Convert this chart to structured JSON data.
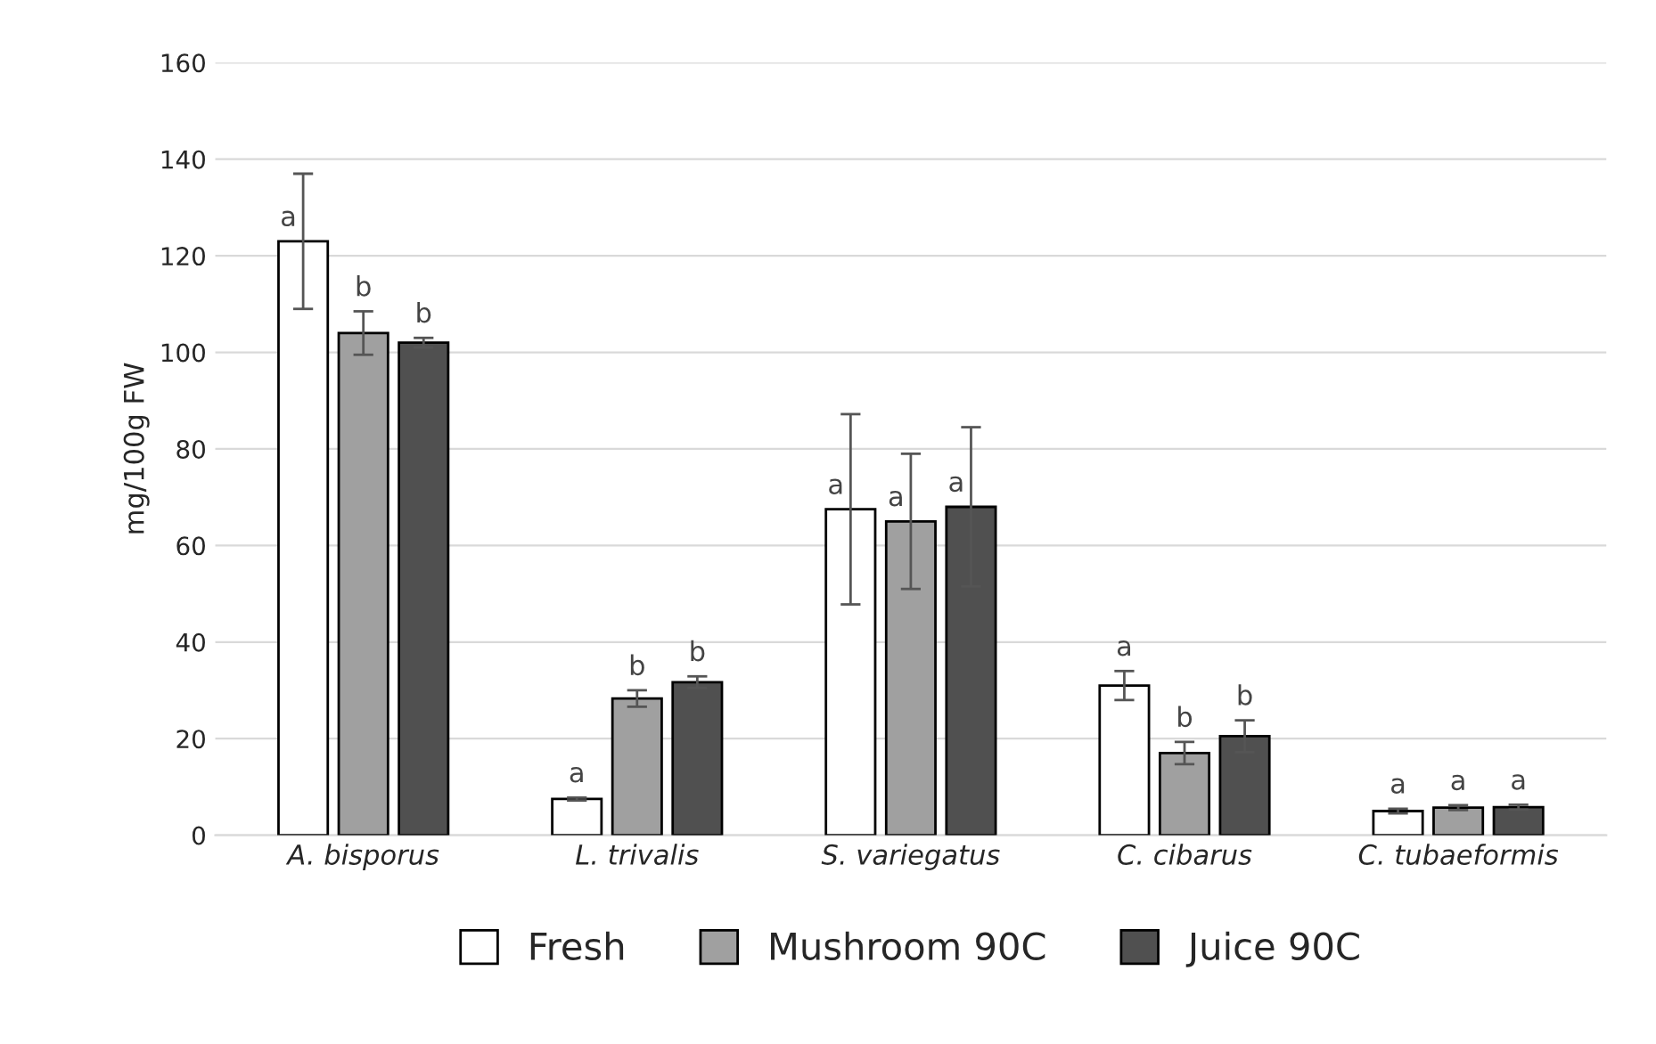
{
  "chart_data": {
    "type": "bar",
    "ylabel": "mg/100g FW",
    "categories": [
      "A. bisporus",
      "L. trivalis",
      "S. variegatus",
      "C. cibarus",
      "C. tubaeformis"
    ],
    "series": [
      {
        "name": "Fresh",
        "color": "#ffffff",
        "values": [
          123,
          7.5,
          67.5,
          31,
          5
        ],
        "errors": [
          14,
          0.3,
          19.7,
          3,
          0.5
        ],
        "value_labels": [
          "a",
          "a",
          "a",
          "a",
          "a"
        ]
      },
      {
        "name": "Mushroom 90C",
        "color": "#a0a0a0",
        "values": [
          104,
          28.3,
          65,
          17,
          5.7
        ],
        "errors": [
          4.5,
          1.7,
          14,
          2.3,
          0.5
        ],
        "value_labels": [
          "b",
          "b",
          "a",
          "b",
          "a"
        ]
      },
      {
        "name": "Juice 90C",
        "color": "#505050",
        "values": [
          102,
          31.7,
          68,
          20.5,
          5.8
        ],
        "errors": [
          1,
          1.2,
          16.5,
          3.3,
          0.5
        ],
        "value_labels": [
          "b",
          "b",
          "a",
          "b",
          "a"
        ]
      }
    ],
    "ylim": [
      0,
      160
    ],
    "yticks": [
      0,
      20,
      40,
      60,
      80,
      100,
      120,
      140,
      160
    ],
    "grid": "y",
    "legend": "bottom"
  }
}
